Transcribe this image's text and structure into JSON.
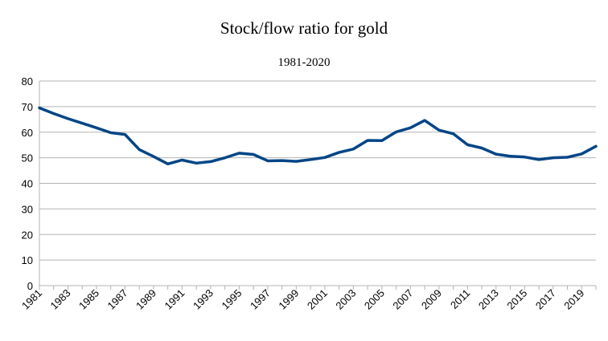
{
  "chart_data": {
    "type": "line",
    "title": "Stock/flow ratio for gold",
    "subtitle": "1981-2020",
    "xlabel": "",
    "ylabel": "",
    "ylim": [
      0,
      80
    ],
    "yticks": [
      0,
      10,
      20,
      30,
      40,
      50,
      60,
      70,
      80
    ],
    "grid": true,
    "legend": "none",
    "x": [
      1981,
      1982,
      1983,
      1984,
      1985,
      1986,
      1987,
      1988,
      1989,
      1990,
      1991,
      1992,
      1993,
      1994,
      1995,
      1996,
      1997,
      1998,
      1999,
      2000,
      2001,
      2002,
      2003,
      2004,
      2005,
      2006,
      2007,
      2008,
      2009,
      2010,
      2011,
      2012,
      2013,
      2014,
      2015,
      2016,
      2017,
      2018,
      2019,
      2020
    ],
    "xtick_labels": [
      "1981",
      "1983",
      "1985",
      "1987",
      "1989",
      "1991",
      "1993",
      "1995",
      "1997",
      "1999",
      "2001",
      "2003",
      "2005",
      "2007",
      "2009",
      "2011",
      "2013",
      "2015",
      "2017",
      "2019"
    ],
    "series": [
      {
        "name": "Stock/flow ratio",
        "color": "#004586",
        "values": [
          69.5,
          67.3,
          65.3,
          63.5,
          61.7,
          59.8,
          59.1,
          53.2,
          50.5,
          47.6,
          49.1,
          47.9,
          48.5,
          50.0,
          51.8,
          51.3,
          48.8,
          48.9,
          48.6,
          49.3,
          50.1,
          52.1,
          53.4,
          56.8,
          56.7,
          60.1,
          61.7,
          64.6,
          60.8,
          59.4,
          55.1,
          53.8,
          51.4,
          50.6,
          50.3,
          49.3,
          50.0,
          50.2,
          51.5,
          54.5
        ]
      }
    ]
  }
}
